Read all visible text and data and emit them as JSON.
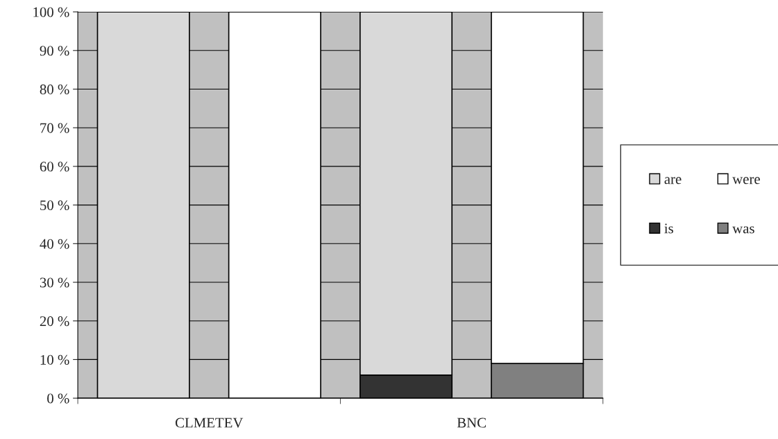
{
  "chart_data": {
    "type": "bar",
    "stacked": true,
    "categories": [
      "CLMETEV",
      null,
      "BNC",
      null
    ],
    "series": [
      {
        "name": "is",
        "color": "#333333",
        "values": [
          0,
          null,
          6,
          null
        ]
      },
      {
        "name": "are",
        "color": "#d9d9d9",
        "values": [
          100,
          null,
          94,
          null
        ]
      },
      {
        "name": "was",
        "color": "#808080",
        "values": [
          null,
          0,
          null,
          9
        ]
      },
      {
        "name": "were",
        "color": "#ffffff",
        "values": [
          null,
          100,
          null,
          91
        ]
      }
    ],
    "ylim": [
      0,
      100
    ],
    "yticks": [
      {
        "value": 0,
        "label": "0 %"
      },
      {
        "value": 10,
        "label": "10 %"
      },
      {
        "value": 20,
        "label": "20 %"
      },
      {
        "value": 30,
        "label": "30 %"
      },
      {
        "value": 40,
        "label": "40 %"
      },
      {
        "value": 50,
        "label": "50 %"
      },
      {
        "value": 60,
        "label": "60 %"
      },
      {
        "value": 70,
        "label": "70 %"
      },
      {
        "value": 80,
        "label": "80 %"
      },
      {
        "value": 90,
        "label": "90 %"
      },
      {
        "value": 100,
        "label": "100 %"
      }
    ],
    "grid": "y",
    "legend": "right"
  }
}
